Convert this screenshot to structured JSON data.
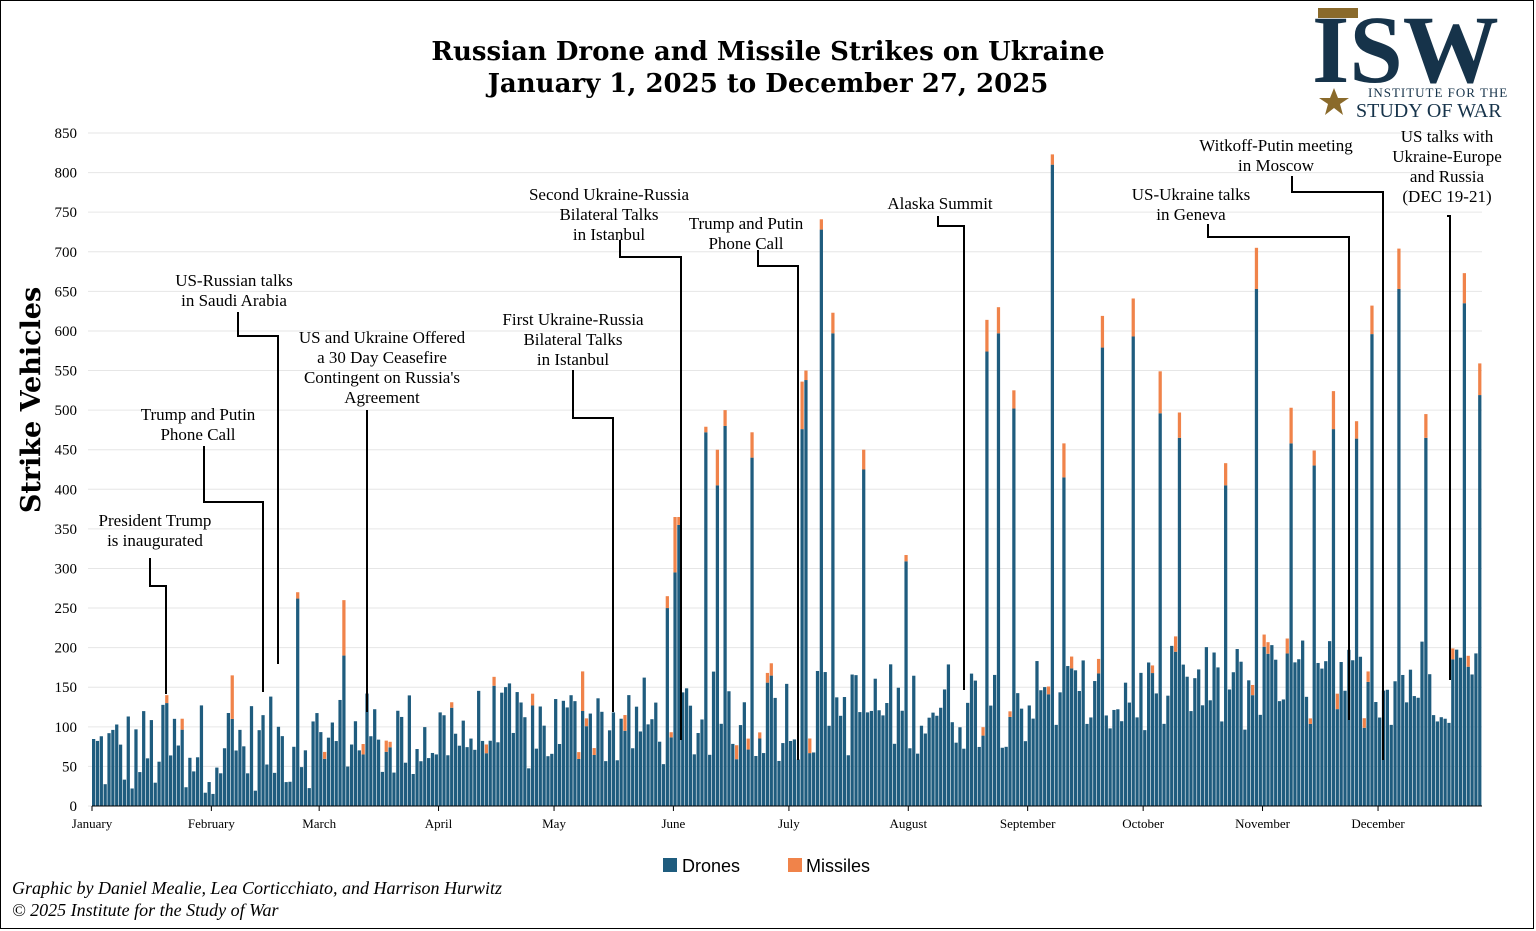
{
  "logo": {
    "big": "ISW",
    "line1": "INSTITUTE FOR THE",
    "line2": "STUDY OF WAR"
  },
  "credit": {
    "line1": "Graphic by Daniel Mealie, Lea Corticchiato, and Harrison Hurwitz",
    "line2": "© 2025 Institute for the Study of War"
  },
  "colors": {
    "drones": "#1f5c7e",
    "missiles": "#f0834a",
    "grid": "#e6e6e6",
    "leader": "#000000"
  },
  "chart_data": {
    "type": "bar",
    "stacked": true,
    "title": [
      "Russian Drone and Missile Strikes on Ukraine",
      "January 1, 2025 to December 27, 2025"
    ],
    "ylabel": "Strike Vehicles",
    "xlabel": "",
    "ylim": [
      0,
      850
    ],
    "yticks": [
      0,
      50,
      100,
      150,
      200,
      250,
      300,
      350,
      400,
      450,
      500,
      550,
      600,
      650,
      700,
      750,
      800,
      850
    ],
    "grid": true,
    "legend_position": "bottom",
    "x_start": "2025-01-01",
    "x_end": "2025-12-27",
    "months": [
      {
        "label": "January",
        "date": "2025-01-01"
      },
      {
        "label": "February",
        "date": "2025-02-01"
      },
      {
        "label": "March",
        "date": "2025-03-01"
      },
      {
        "label": "April",
        "date": "2025-04-01"
      },
      {
        "label": "May",
        "date": "2025-05-01"
      },
      {
        "label": "June",
        "date": "2025-06-01"
      },
      {
        "label": "July",
        "date": "2025-07-01"
      },
      {
        "label": "August",
        "date": "2025-08-01"
      },
      {
        "label": "September",
        "date": "2025-09-01"
      },
      {
        "label": "October",
        "date": "2025-10-01"
      },
      {
        "label": "November",
        "date": "2025-11-01"
      },
      {
        "label": "December",
        "date": "2025-12-01"
      }
    ],
    "series": [
      {
        "name": "Drones",
        "color": "#1f5c7e"
      },
      {
        "name": "Missiles",
        "color": "#f0834a"
      }
    ],
    "highlights": [
      {
        "date": "2025-01-20",
        "drones": 130,
        "missiles": 10
      },
      {
        "date": "2025-02-06",
        "drones": 110,
        "missiles": 55
      },
      {
        "date": "2025-02-23",
        "drones": 262,
        "missiles": 8
      },
      {
        "date": "2025-03-07",
        "drones": 190,
        "missiles": 70
      },
      {
        "date": "2025-05-08",
        "drones": 120,
        "missiles": 50
      },
      {
        "date": "2025-05-30",
        "drones": 250,
        "missiles": 15
      },
      {
        "date": "2025-06-01",
        "drones": 295,
        "missiles": 70
      },
      {
        "date": "2025-06-02",
        "drones": 355,
        "missiles": 10
      },
      {
        "date": "2025-06-09",
        "drones": 472,
        "missiles": 7
      },
      {
        "date": "2025-06-12",
        "drones": 405,
        "missiles": 45
      },
      {
        "date": "2025-06-14",
        "drones": 480,
        "missiles": 20
      },
      {
        "date": "2025-06-21",
        "drones": 440,
        "missiles": 32
      },
      {
        "date": "2025-07-04",
        "drones": 476,
        "missiles": 60
      },
      {
        "date": "2025-07-05",
        "drones": 538,
        "missiles": 12
      },
      {
        "date": "2025-07-09",
        "drones": 728,
        "missiles": 13
      },
      {
        "date": "2025-07-12",
        "drones": 597,
        "missiles": 26
      },
      {
        "date": "2025-07-20",
        "drones": 425,
        "missiles": 25
      },
      {
        "date": "2025-07-31",
        "drones": 309,
        "missiles": 8
      },
      {
        "date": "2025-08-21",
        "drones": 574,
        "missiles": 40
      },
      {
        "date": "2025-08-24",
        "drones": 597,
        "missiles": 33
      },
      {
        "date": "2025-08-28",
        "drones": 502,
        "missiles": 23
      },
      {
        "date": "2025-09-07",
        "drones": 810,
        "missiles": 13
      },
      {
        "date": "2025-09-10",
        "drones": 415,
        "missiles": 43
      },
      {
        "date": "2025-09-20",
        "drones": 579,
        "missiles": 40
      },
      {
        "date": "2025-09-28",
        "drones": 593,
        "missiles": 48
      },
      {
        "date": "2025-10-05",
        "drones": 496,
        "missiles": 53
      },
      {
        "date": "2025-10-10",
        "drones": 465,
        "missiles": 32
      },
      {
        "date": "2025-10-22",
        "drones": 405,
        "missiles": 28
      },
      {
        "date": "2025-10-30",
        "drones": 653,
        "missiles": 52
      },
      {
        "date": "2025-11-08",
        "drones": 458,
        "missiles": 45
      },
      {
        "date": "2025-11-14",
        "drones": 430,
        "missiles": 19
      },
      {
        "date": "2025-11-19",
        "drones": 476,
        "missiles": 48
      },
      {
        "date": "2025-11-25",
        "drones": 464,
        "missiles": 22
      },
      {
        "date": "2025-11-29",
        "drones": 596,
        "missiles": 36
      },
      {
        "date": "2025-12-06",
        "drones": 653,
        "missiles": 51
      },
      {
        "date": "2025-12-13",
        "drones": 465,
        "missiles": 30
      },
      {
        "date": "2025-12-23",
        "drones": 635,
        "missiles": 38
      },
      {
        "date": "2025-12-27",
        "drones": 519,
        "missiles": 40
      }
    ],
    "annotations": [
      {
        "lines": [
          "President Trump",
          "is inaugurated"
        ],
        "date": "2025-01-20"
      },
      {
        "lines": [
          "Trump and Putin",
          "Phone Call"
        ],
        "date": "2025-02-12"
      },
      {
        "lines": [
          "US-Russian talks",
          "in Saudi Arabia"
        ],
        "date": "2025-02-18"
      },
      {
        "lines": [
          "US and Ukraine Offered",
          "a 30 Day Ceasefire",
          "Contingent on Russia's",
          "Agreement"
        ],
        "date": "2025-03-11"
      },
      {
        "lines": [
          "First Ukraine-Russia",
          "Bilateral Talks",
          "in Istanbul"
        ],
        "date": "2025-05-16"
      },
      {
        "lines": [
          "Second Ukraine-Russia",
          "Bilateral Talks",
          "in Istanbul"
        ],
        "date": "2025-06-02"
      },
      {
        "lines": [
          "Trump and Putin",
          "Phone Call"
        ],
        "date": "2025-07-03"
      },
      {
        "lines": [
          "Alaska Summit"
        ],
        "date": "2025-08-15"
      },
      {
        "lines": [
          "US-Ukraine talks",
          "in Geneva"
        ],
        "date": "2025-11-23"
      },
      {
        "lines": [
          "Witkoff-Putin meeting",
          "in Moscow"
        ],
        "date": "2025-12-02"
      },
      {
        "lines": [
          "US talks with",
          "Ukraine-Europe",
          "and Russia",
          "(DEC 19-21)"
        ],
        "date": "2025-12-19"
      }
    ]
  }
}
